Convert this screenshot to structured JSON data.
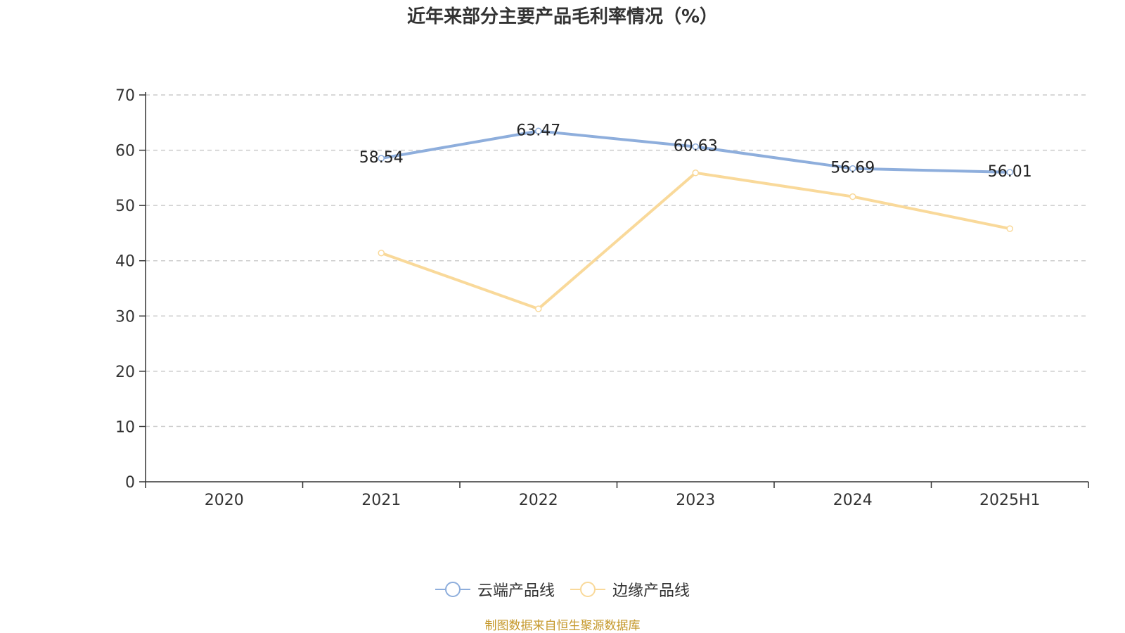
{
  "chart_data": {
    "type": "line",
    "title": "近年来部分主要产品毛利率情况（%）",
    "categories": [
      "2020",
      "2021",
      "2022",
      "2023",
      "2024",
      "2025H1"
    ],
    "ylim": [
      0,
      70
    ],
    "yticks": [
      0,
      10,
      20,
      30,
      40,
      50,
      60,
      70
    ],
    "grid": true,
    "legend_position": "bottom-center",
    "series": [
      {
        "name": "云端产品线",
        "color": "#8eaedc",
        "values": [
          null,
          58.54,
          63.47,
          60.63,
          56.69,
          56.01
        ],
        "labels": [
          null,
          "58.54",
          "63.47",
          "60.63",
          "56.69",
          "56.01"
        ]
      },
      {
        "name": "边缘产品线",
        "color": "#f9d99a",
        "values": [
          null,
          41.4,
          31.3,
          55.9,
          51.6,
          45.8
        ],
        "labels": [
          null,
          null,
          null,
          null,
          null,
          null
        ]
      }
    ]
  },
  "source_note": "制图数据来自恒生聚源数据库"
}
